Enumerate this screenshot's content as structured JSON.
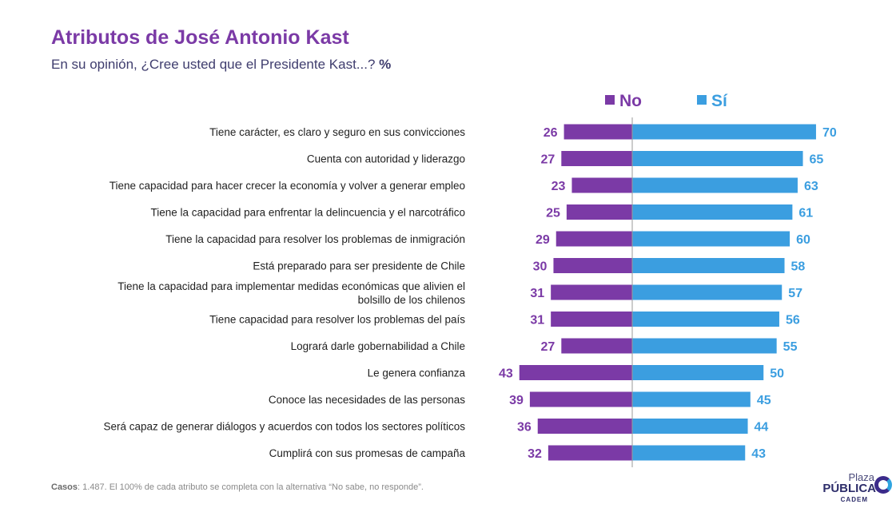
{
  "header": {
    "title": "Atributos de José Antonio Kast",
    "subtitle": "En su opinión, ¿Cree usted que el Presidente Kast...?",
    "subtitle_unit": "%"
  },
  "colors": {
    "no": "#7b3aa6",
    "si": "#3b9ee0",
    "axis": "#9a9a9a"
  },
  "chart_data": {
    "type": "bar",
    "orientation": "horizontal-diverging",
    "legend_position": "top",
    "series": [
      {
        "name": "No",
        "values": [
          26,
          27,
          23,
          25,
          29,
          30,
          31,
          31,
          27,
          43,
          39,
          36,
          32
        ]
      },
      {
        "name": "Sí",
        "values": [
          70,
          65,
          63,
          61,
          60,
          58,
          57,
          56,
          55,
          50,
          45,
          44,
          43
        ]
      }
    ],
    "categories": [
      [
        "Tiene carácter, es claro y seguro en sus convicciones"
      ],
      [
        "Cuenta con autoridad y liderazgo"
      ],
      [
        "Tiene capacidad para hacer crecer la economía y volver a generar empleo"
      ],
      [
        "Tiene la capacidad para enfrentar la delincuencia y el narcotráfico"
      ],
      [
        "Tiene la capacidad para resolver los problemas de inmigración"
      ],
      [
        "Está preparado para ser presidente de Chile"
      ],
      [
        "Tiene la capacidad para implementar medidas económicas que alivien el",
        "bolsillo de los chilenos"
      ],
      [
        "Tiene capacidad para resolver los problemas del país"
      ],
      [
        "Logrará darle gobernabilidad a Chile"
      ],
      [
        "Le genera confianza"
      ],
      [
        "Conoce las necesidades de las personas"
      ],
      [
        "Será capaz de generar diálogos y acuerdos con todos los sectores políticos"
      ],
      [
        "Cumplirá con sus promesas de campaña"
      ]
    ]
  },
  "footnote": {
    "label": "Casos",
    "text": ": 1.487. El 100% de cada atributo se completa con la alternativa “No sabe, no responde”."
  },
  "logo": {
    "line1": "Plaza",
    "line2": "PÚBLICA",
    "line3": "CADEM"
  }
}
